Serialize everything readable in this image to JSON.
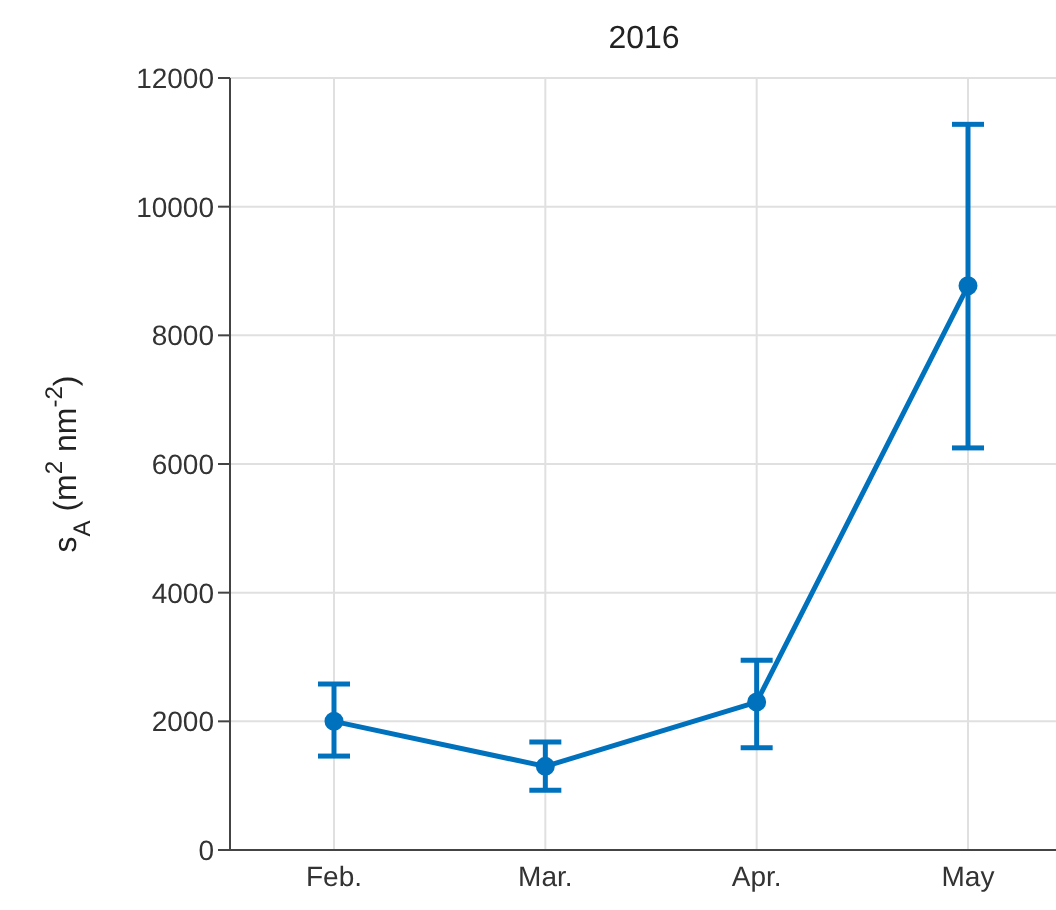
{
  "chart_data": {
    "type": "line",
    "title": "2016",
    "ylabel": "s$_{A}$ (m$^{2}$ nm$^{-2}$)",
    "categories": [
      "Feb.",
      "Mar.",
      "Apr.",
      "May"
    ],
    "series": [
      {
        "color": "#0072bd",
        "values": [
          2000,
          1300,
          2300,
          8770
        ],
        "errors": [
          [
            1460,
            2580
          ],
          [
            930,
            1680
          ],
          [
            1590,
            2950
          ],
          [
            6250,
            11280
          ]
        ]
      }
    ],
    "ylim": [
      0,
      12000
    ],
    "yticks": [
      0,
      2000,
      4000,
      6000,
      8000,
      10000,
      12000
    ],
    "grid": true,
    "marker": "circle",
    "line_style": "solid"
  }
}
